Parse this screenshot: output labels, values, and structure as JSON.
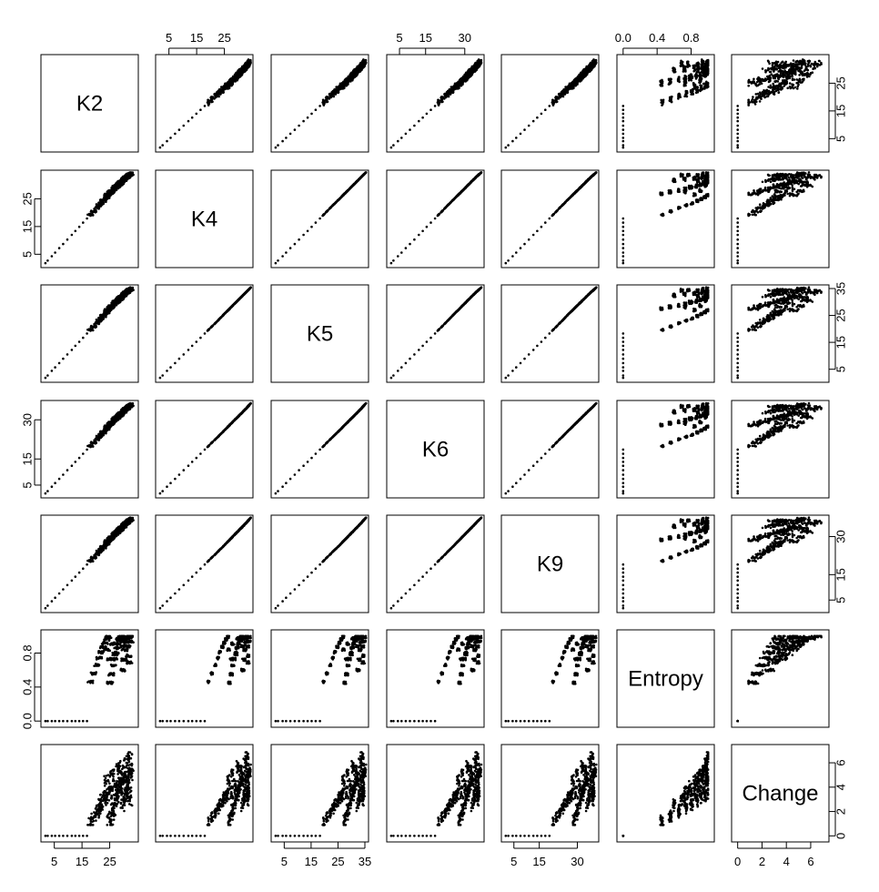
{
  "chart_data": {
    "type": "scatter-matrix",
    "variables": [
      "K2",
      "K4",
      "K5",
      "K6",
      "K9",
      "Entropy",
      "Change"
    ],
    "ranges": {
      "K2": [
        1.5,
        34
      ],
      "K4": [
        1.5,
        34
      ],
      "K5": [
        1.5,
        35
      ],
      "K6": [
        1.5,
        36
      ],
      "K9": [
        1.5,
        37
      ],
      "Entropy": [
        -0.03,
        1.03
      ],
      "Change": [
        -0.2,
        7.2
      ]
    },
    "ticks": {
      "K2": [
        5,
        15,
        25
      ],
      "K4": [
        5,
        15,
        25
      ],
      "K5": [
        5,
        15,
        25,
        35
      ],
      "K6": [
        5,
        15,
        30
      ],
      "K9": [
        5,
        15,
        30
      ],
      "Entropy": [
        0.0,
        0.4,
        0.8
      ],
      "Change": [
        0,
        2,
        4,
        6
      ]
    },
    "tick_labels": {
      "top": [
        {
          "col": 1,
          "labels": [
            "5",
            "15",
            "25"
          ]
        },
        {
          "col": 3,
          "labels": [
            "5",
            "15",
            "30"
          ]
        },
        {
          "col": 5,
          "labels": [
            "0.0",
            "0.4",
            "0.8"
          ]
        }
      ],
      "bottom": [
        {
          "col": 0,
          "labels": [
            "5",
            "15",
            "25"
          ]
        },
        {
          "col": 2,
          "labels": [
            "5",
            "15",
            "25",
            "35"
          ]
        },
        {
          "col": 4,
          "labels": [
            "5",
            "15",
            "30"
          ]
        },
        {
          "col": 6,
          "labels": [
            "0",
            "2",
            "4",
            "6"
          ]
        }
      ],
      "left": [
        {
          "row": 1,
          "labels": [
            "5",
            "15",
            "25"
          ]
        },
        {
          "row": 3,
          "labels": [
            "5",
            "15",
            "30"
          ]
        },
        {
          "row": 5,
          "labels": [
            "0.0",
            "0.4",
            "0.8"
          ]
        }
      ],
      "right": [
        {
          "row": 0,
          "labels": [
            "5",
            "15",
            "25"
          ]
        },
        {
          "row": 2,
          "labels": [
            "5",
            "15",
            "25",
            "35"
          ]
        },
        {
          "row": 4,
          "labels": [
            "5",
            "15",
            "30"
          ]
        },
        {
          "row": 6,
          "labels": [
            "0",
            "2",
            "4",
            "6"
          ]
        }
      ]
    },
    "sample_data": {
      "description_free": true,
      "K2": [
        1.8,
        2.6,
        4.1,
        5.3,
        6.8,
        8.2,
        9.7,
        11.3,
        12.6,
        14.0,
        15.4,
        16.8,
        18.1,
        19.2,
        20.3,
        21.1,
        21.8,
        22.6,
        23.3,
        23.9,
        24.5,
        25.1,
        25.6,
        26.2,
        26.7,
        27.2,
        27.6,
        28.1,
        28.5,
        28.9,
        29.3,
        29.7,
        30.0,
        30.4,
        30.8,
        31.1,
        31.5,
        31.8,
        32.2,
        32.6,
        33.0,
        24.0,
        26.0,
        28.0,
        30.0,
        29.0,
        27.0,
        25.0,
        31.0,
        32.0
      ],
      "K4": [
        1.8,
        2.7,
        4.3,
        5.6,
        7.2,
        8.7,
        10.3,
        12.0,
        13.4,
        14.9,
        16.4,
        17.9,
        19.3,
        20.5,
        21.7,
        22.6,
        23.4,
        24.3,
        25.0,
        25.7,
        26.3,
        26.9,
        27.5,
        28.1,
        28.6,
        29.1,
        29.6,
        30.1,
        30.5,
        30.9,
        31.3,
        31.7,
        32.0,
        32.4,
        32.7,
        33.0,
        33.3,
        33.5,
        33.7,
        33.9,
        34.0,
        26.5,
        28.0,
        29.8,
        31.5,
        30.8,
        29.2,
        27.5,
        32.5,
        33.2
      ],
      "K5": [
        1.8,
        2.7,
        4.4,
        5.7,
        7.3,
        8.9,
        10.5,
        12.2,
        13.7,
        15.2,
        16.7,
        18.3,
        19.7,
        20.9,
        22.1,
        23.0,
        23.9,
        24.8,
        25.6,
        26.3,
        26.9,
        27.6,
        28.2,
        28.8,
        29.3,
        29.8,
        30.3,
        30.8,
        31.3,
        31.7,
        32.1,
        32.5,
        32.8,
        33.2,
        33.5,
        33.8,
        34.1,
        34.3,
        34.5,
        34.7,
        34.9,
        27.0,
        28.7,
        30.5,
        32.2,
        31.5,
        29.9,
        28.1,
        33.3,
        34.0
      ],
      "K6": [
        1.8,
        2.7,
        4.4,
        5.8,
        7.4,
        9.0,
        10.7,
        12.4,
        13.9,
        15.4,
        17.0,
        18.6,
        20.0,
        21.3,
        22.5,
        23.4,
        24.3,
        25.2,
        26.0,
        26.7,
        27.4,
        28.1,
        28.7,
        29.3,
        29.9,
        30.4,
        30.9,
        31.4,
        31.9,
        32.3,
        32.7,
        33.1,
        33.5,
        33.9,
        34.2,
        34.5,
        34.8,
        35.1,
        35.3,
        35.6,
        35.8,
        27.5,
        29.2,
        31.0,
        32.8,
        32.1,
        30.4,
        28.6,
        33.9,
        34.7
      ],
      "K9": [
        1.8,
        2.8,
        4.5,
        5.9,
        7.6,
        9.2,
        10.9,
        12.7,
        14.2,
        15.8,
        17.4,
        19.0,
        20.5,
        21.8,
        23.0,
        24.0,
        24.9,
        25.8,
        26.6,
        27.4,
        28.1,
        28.8,
        29.5,
        30.1,
        30.7,
        31.3,
        31.8,
        32.3,
        32.8,
        33.3,
        33.7,
        34.1,
        34.5,
        34.9,
        35.3,
        35.6,
        35.9,
        36.2,
        36.4,
        36.7,
        36.9,
        28.2,
        30.0,
        31.9,
        33.7,
        33.0,
        31.2,
        29.3,
        34.9,
        35.8
      ],
      "Entropy": [
        0.0,
        0.0,
        0.0,
        0.0,
        0.0,
        0.0,
        0.0,
        0.0,
        0.0,
        0.0,
        0.0,
        0.0,
        0.46,
        0.56,
        0.66,
        0.74,
        0.81,
        0.87,
        0.92,
        0.96,
        0.99,
        0.45,
        0.55,
        0.65,
        0.73,
        0.8,
        0.86,
        0.91,
        0.95,
        0.98,
        1.0,
        0.6,
        0.72,
        0.84,
        0.93,
        0.98,
        0.88,
        0.77,
        0.69,
        0.94,
        0.99,
        0.84,
        0.91,
        0.97,
        0.88,
        0.95,
        0.79,
        0.73,
        0.97,
        1.0
      ],
      "Change": [
        0.0,
        0.0,
        0.0,
        0.0,
        0.0,
        0.0,
        0.0,
        0.0,
        0.0,
        0.0,
        0.0,
        0.0,
        1.0,
        1.5,
        2.0,
        2.3,
        2.6,
        2.9,
        3.1,
        3.3,
        3.5,
        1.2,
        1.8,
        2.2,
        2.7,
        3.0,
        3.4,
        3.7,
        4.0,
        4.3,
        4.6,
        2.5,
        3.2,
        3.8,
        4.4,
        4.9,
        4.1,
        3.5,
        3.0,
        5.0,
        5.5,
        4.5,
        5.0,
        5.7,
        4.8,
        5.3,
        4.0,
        3.6,
        6.0,
        6.5
      ]
    }
  }
}
